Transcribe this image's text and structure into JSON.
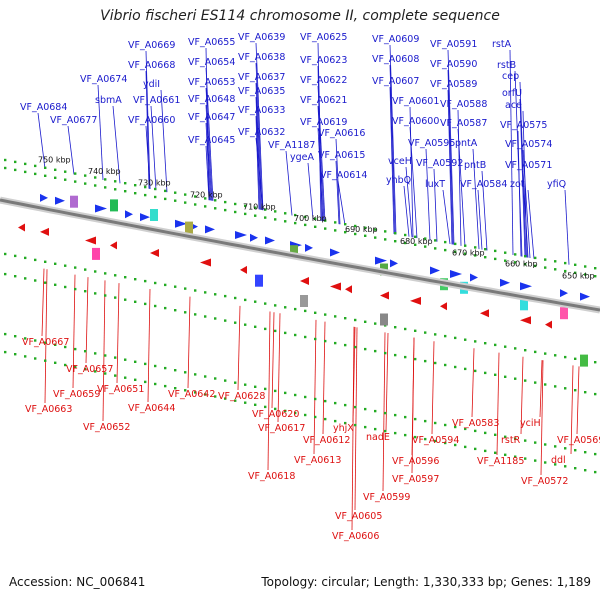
{
  "header": {
    "title": "Vibrio fischeri ES114 chromosome II, complete sequence"
  },
  "footer": {
    "accession": "Accession: NC_006841",
    "summary": "Topology: circular; Length: 1,330,333 bp; Genes: 1,189"
  },
  "colors": {
    "top_label": "#1a1acc",
    "bottom_label": "#dd1111",
    "backbone": "#888888"
  },
  "scale_labels": [
    "750 kbp",
    "740 kbp",
    "730 kbp",
    "720 kbp",
    "710 kbp",
    "700 kbp",
    "690 kbp",
    "680 kbp",
    "670 kbp",
    "660 kbp",
    "650 kbp"
  ],
  "top_labels": [
    "VF_A0684",
    "VF_A0677",
    "VF_A0674",
    "VF_A0669",
    "VF_A0668",
    "sbmA",
    "ydiI",
    "VF_A0661",
    "VF_A0660",
    "VF_A0655",
    "VF_A0654",
    "VF_A0653",
    "VF_A0648",
    "VF_A0647",
    "VF_A0645",
    "VF_A0639",
    "VF_A0638",
    "VF_A0637",
    "VF_A0635",
    "VF_A0633",
    "VF_A0632",
    "VF_A1187",
    "ygeA",
    "VF_A0625",
    "VF_A0623",
    "VF_A0622",
    "VF_A0621",
    "VF_A0619",
    "VF_A0616",
    "VF_A0615",
    "VF_A0614",
    "VF_A0609",
    "VF_A0608",
    "VF_A0607",
    "VF_A0601",
    "VF_A0600",
    "vceH",
    "yhbQ",
    "VF_A0595",
    "VF_A0592",
    "luxT",
    "VF_A0591",
    "VF_A0590",
    "VF_A0589",
    "VF_A0588",
    "VF_A0587",
    "pntA",
    "pntB",
    "VF_A0584",
    "rstA",
    "rstB",
    "cep",
    "orfU",
    "ace",
    "VF_A0575",
    "VF_A0574",
    "zot",
    "VF_A0571",
    "yfiQ"
  ],
  "bottom_labels": [
    "VF_A0667",
    "VF_A0657",
    "VF_A0659",
    "VF_A0663",
    "VF_A0651",
    "VF_A0652",
    "VF_A0644",
    "VF_A0642",
    "VF_A0628",
    "VF_A0620",
    "VF_A0617",
    "VF_A0618",
    "VF_A0612",
    "VF_A0613",
    "yhjX",
    "nadE",
    "VF_A0596",
    "VF_A0597",
    "VF_A0599",
    "VF_A0605",
    "VF_A0606",
    "VF_A0594",
    "VF_A0583",
    "VF_A1185",
    "rstR",
    "yciH",
    "VF_A0569",
    "ddl",
    "VF_A0572"
  ]
}
